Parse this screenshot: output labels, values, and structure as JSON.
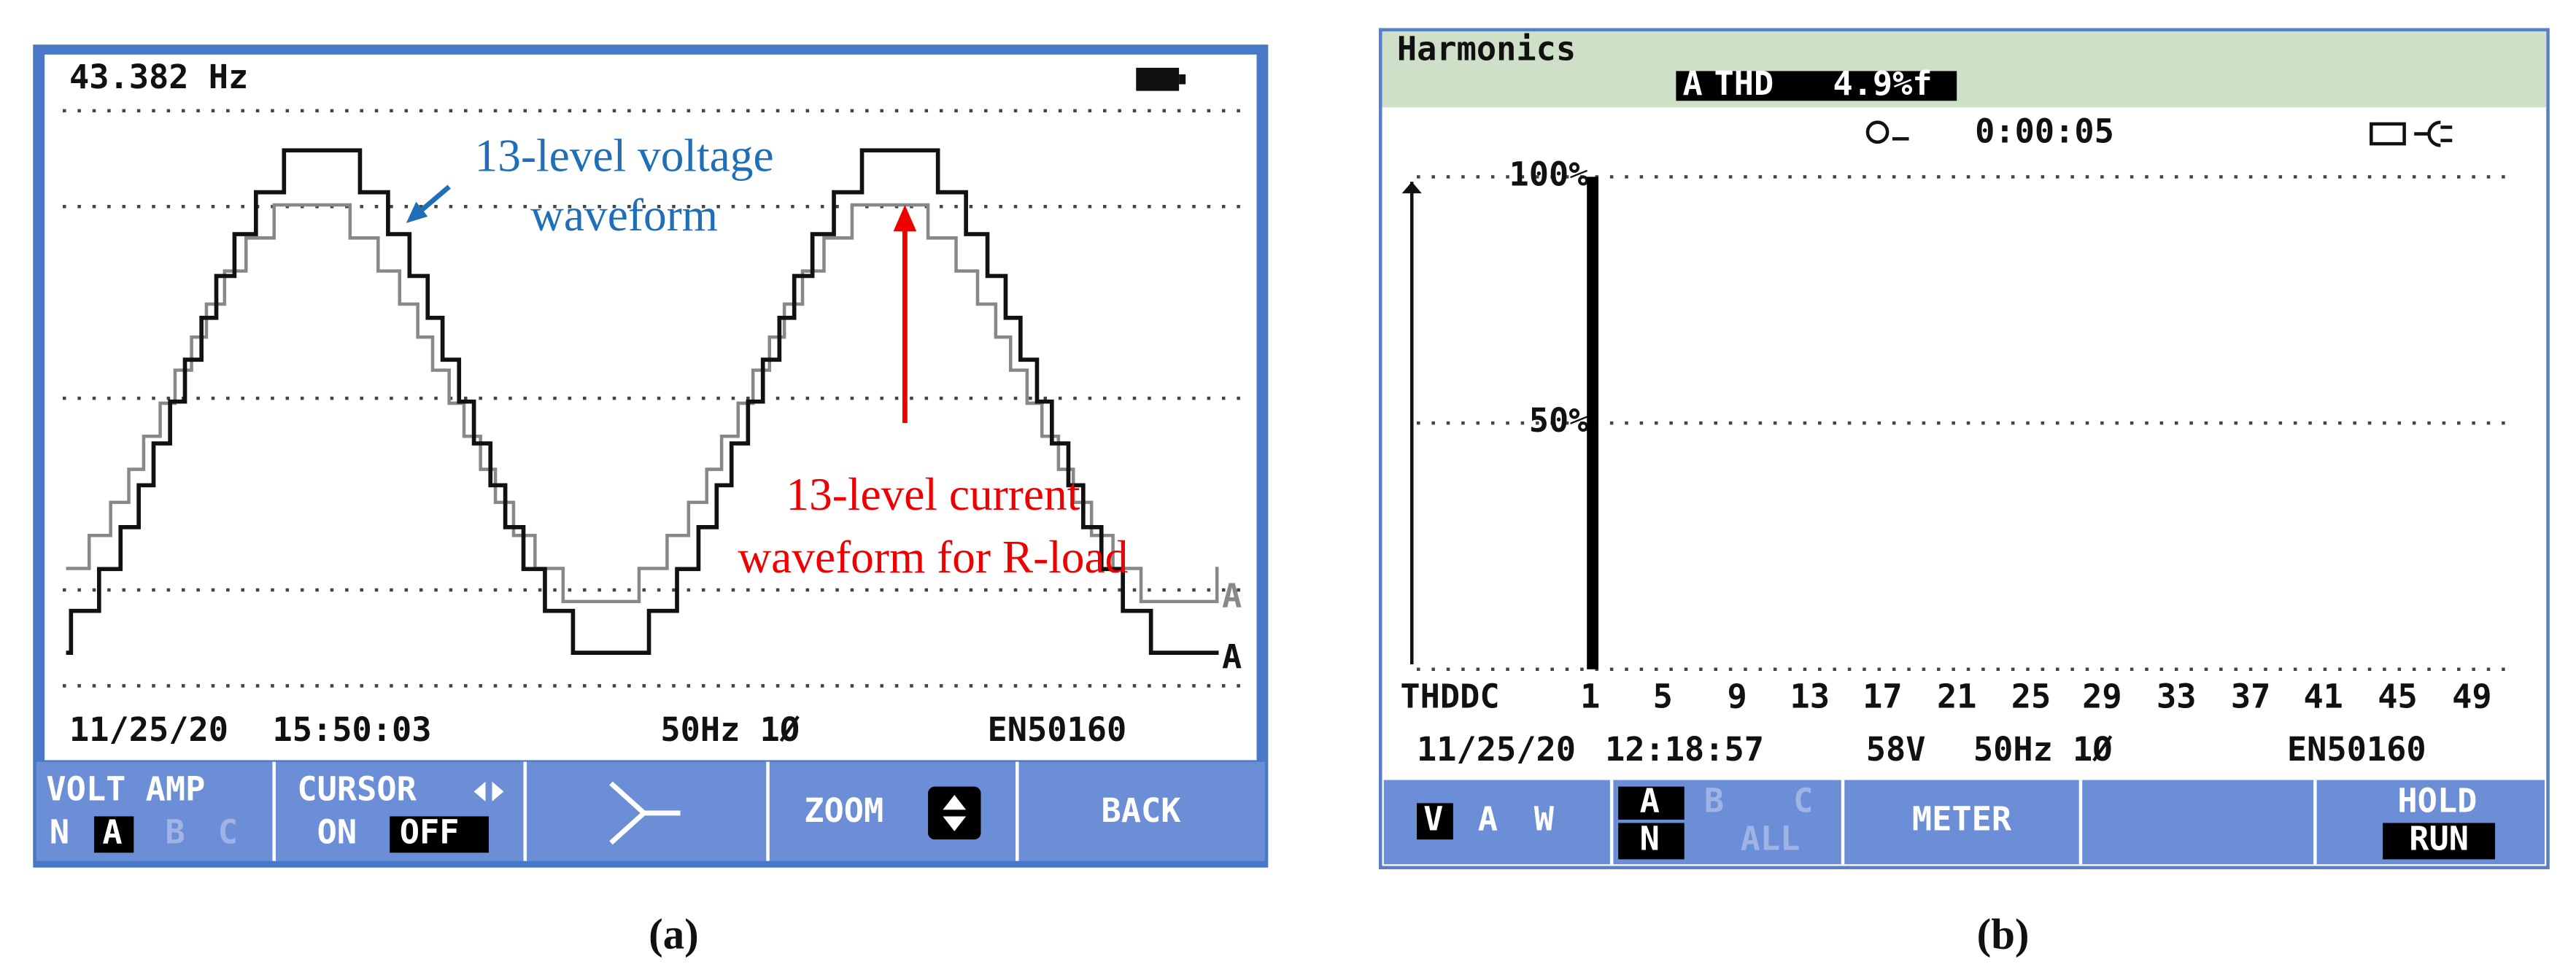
{
  "panel_a": {
    "frequency": "43.382 Hz",
    "annotations": {
      "voltage": [
        "13-level voltage",
        "waveform"
      ],
      "current": [
        "13-level current",
        "waveform for R-load"
      ]
    },
    "trace_labels": [
      "A",
      "A"
    ],
    "status": {
      "date": "11/25/20",
      "time": "15:50:03",
      "frequency": "50Hz 1Ø",
      "standard": "EN50160"
    },
    "menu": {
      "volt_amp": {
        "top": "VOLT AMP",
        "bottom": [
          "N",
          "A",
          "B",
          "C"
        ]
      },
      "cursor": {
        "top": "CURSOR",
        "bottom": [
          "ON",
          "OFF"
        ]
      },
      "zoom": "ZOOM",
      "back": "BACK"
    }
  },
  "panel_b": {
    "title": "Harmonics",
    "thd": {
      "phase": "A",
      "label": "THD",
      "value": "4.9%f"
    },
    "timer": "0:00:05",
    "spectrum": {
      "ylim": [
        0,
        100
      ],
      "yticks": [
        {
          "value": 100,
          "label": "100%"
        },
        {
          "value": 50,
          "label": "50%"
        }
      ],
      "categories": [
        "THDDC",
        "1",
        "5",
        "9",
        "13",
        "17",
        "21",
        "25",
        "29",
        "33",
        "37",
        "41",
        "45",
        "49"
      ],
      "fundamental": 100
    },
    "status": {
      "date": "11/25/20",
      "time": "12:18:57",
      "voltage": "58V",
      "frequency": "50Hz 1Ø",
      "standard": "EN50160"
    },
    "menu": {
      "vaw": [
        "V",
        "A",
        "W"
      ],
      "phase": {
        "top": [
          "A",
          "B",
          "C"
        ],
        "bottom": [
          "N",
          "ALL"
        ]
      },
      "meter": "METER",
      "hold": "HOLD",
      "run": "RUN"
    }
  },
  "captions": [
    "(a)",
    "(b)"
  ]
}
